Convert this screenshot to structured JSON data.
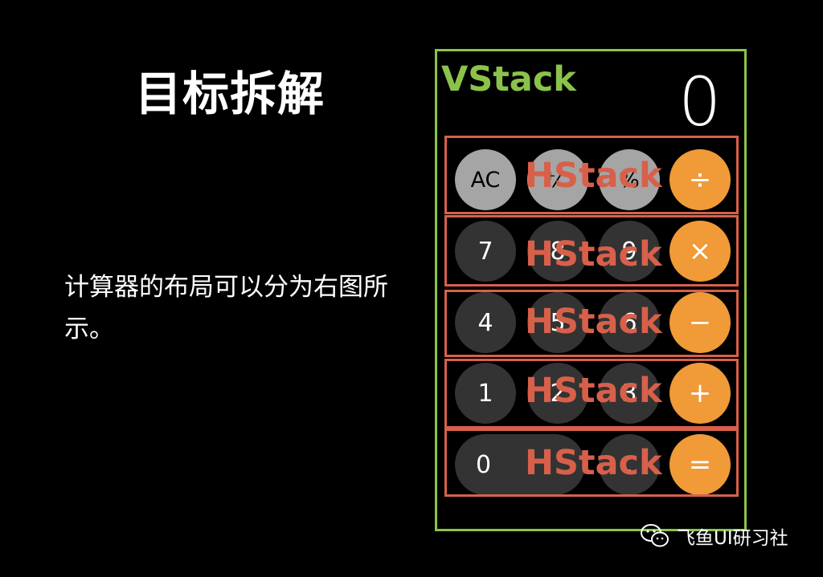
{
  "slide": {
    "title": "目标拆解",
    "description": "计算器的布局可以分为右图所示。"
  },
  "diagram": {
    "vstack_label": "VStack",
    "hstack_label": "HStack",
    "display": "0",
    "rows": [
      [
        "AC",
        "⁺⁄₋",
        "%",
        "÷"
      ],
      [
        "7",
        "8",
        "9",
        "×"
      ],
      [
        "4",
        "5",
        "6",
        "−"
      ],
      [
        "1",
        "2",
        "3",
        "+"
      ],
      [
        "0",
        ".",
        "="
      ]
    ],
    "colors": {
      "vstack_border": "#8bc34a",
      "hstack_border": "#d8604a",
      "light_button": "#a5a5a5",
      "dark_button": "#333333",
      "orange_button": "#f09a38"
    }
  },
  "watermark": {
    "icon": "wechat-icon",
    "text": "飞鱼UI研习社"
  }
}
